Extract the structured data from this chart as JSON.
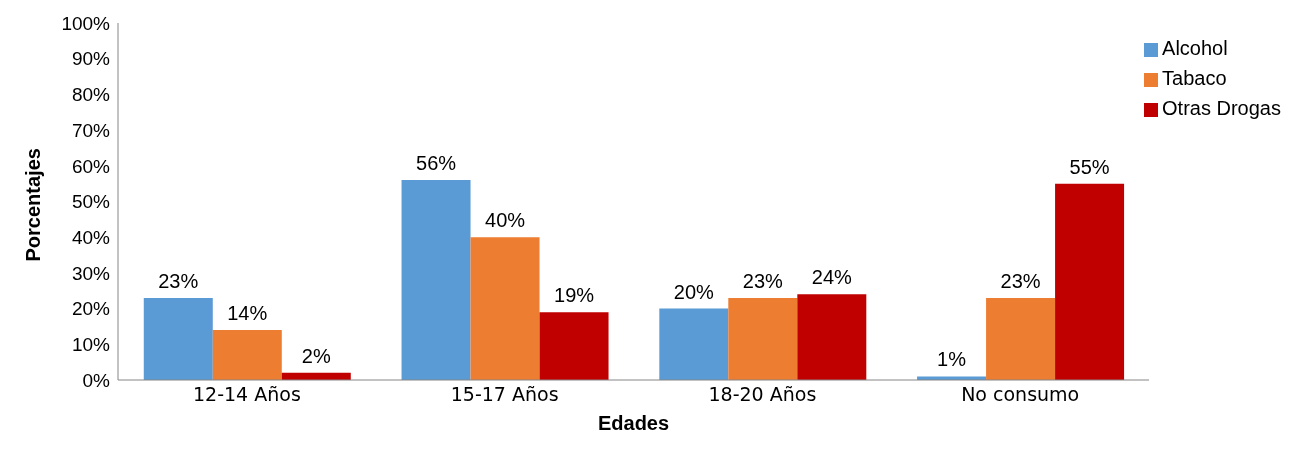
{
  "chart_data": {
    "type": "bar",
    "xlabel": "Edades",
    "ylabel": "Porcentajes",
    "categories": [
      "12-14 Años",
      "15-17 Años",
      "18-20 Años",
      "No consumo"
    ],
    "series": [
      {
        "name": "Alcohol",
        "color": "#5b9bd5",
        "values": [
          23,
          56,
          20,
          1
        ],
        "value_labels": [
          "23%",
          "56%",
          "20%",
          "1%"
        ]
      },
      {
        "name": "Tabaco",
        "color": "#ed7d31",
        "values": [
          14,
          40,
          23,
          23
        ],
        "value_labels": [
          "14%",
          "40%",
          "23%",
          "23%"
        ]
      },
      {
        "name": "Otras Drogas",
        "color": "#c00000",
        "values": [
          2,
          19,
          24,
          55
        ],
        "value_labels": [
          "2%",
          "19%",
          "24%",
          "55%"
        ]
      }
    ],
    "ylim": [
      0,
      100
    ],
    "yticks": [
      {
        "value": 0,
        "label": "0%"
      },
      {
        "value": 10,
        "label": "10%"
      },
      {
        "value": 20,
        "label": "20%"
      },
      {
        "value": 30,
        "label": "30%"
      },
      {
        "value": 40,
        "label": "40%"
      },
      {
        "value": 50,
        "label": "50%"
      },
      {
        "value": 60,
        "label": "60%"
      },
      {
        "value": 70,
        "label": "70%"
      },
      {
        "value": 80,
        "label": "80%"
      },
      {
        "value": 90,
        "label": "90%"
      },
      {
        "value": 100,
        "label": "100%"
      }
    ],
    "grid": false,
    "legend": "top right"
  }
}
